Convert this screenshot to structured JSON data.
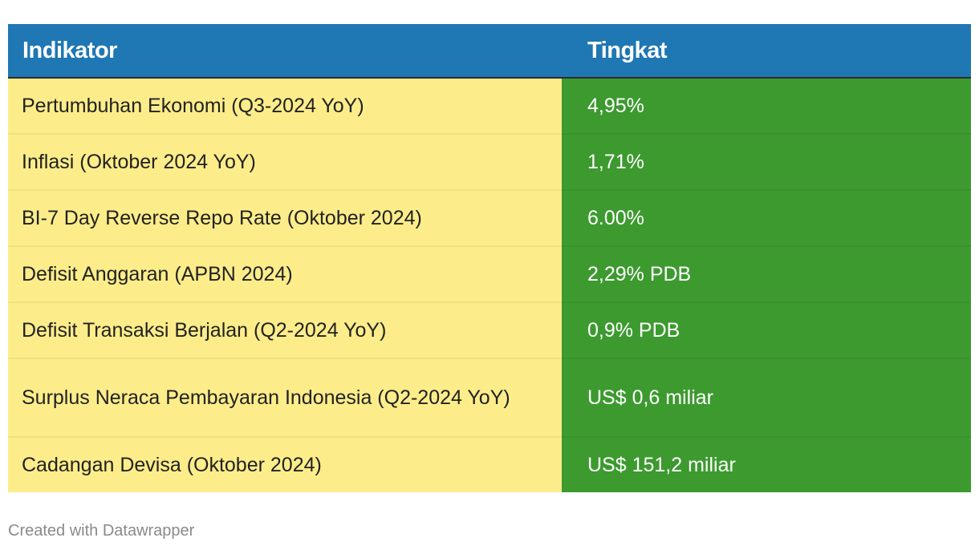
{
  "chart_data": {
    "type": "table",
    "columns": [
      "Indikator",
      "Tingkat"
    ],
    "rows": [
      {
        "indikator": "Pertumbuhan Ekonomi (Q3-2024 YoY)",
        "tingkat": "4,95%"
      },
      {
        "indikator": "Inflasi (Oktober 2024 YoY)",
        "tingkat": "1,71%"
      },
      {
        "indikator": "BI-7 Day Reverse Repo Rate (Oktober 2024)",
        "tingkat": "6.00%"
      },
      {
        "indikator": "Defisit Anggaran (APBN 2024)",
        "tingkat": "2,29% PDB"
      },
      {
        "indikator": "Defisit Transaksi Berjalan (Q2-2024 YoY)",
        "tingkat": "0,9% PDB"
      },
      {
        "indikator": "Surplus Neraca Pembayaran Indonesia (Q2-2024 YoY)",
        "tingkat": "US$ 0,6 miliar"
      },
      {
        "indikator": "Cadangan Devisa (Oktober 2024)",
        "tingkat": "US$ 151,2 miliar"
      }
    ],
    "colors": {
      "header_bg": "#1f77b4",
      "name_cell_bg": "#fded8a",
      "value_cell_bg": "#3c9a2f"
    }
  },
  "credit": "Created with Datawrapper"
}
